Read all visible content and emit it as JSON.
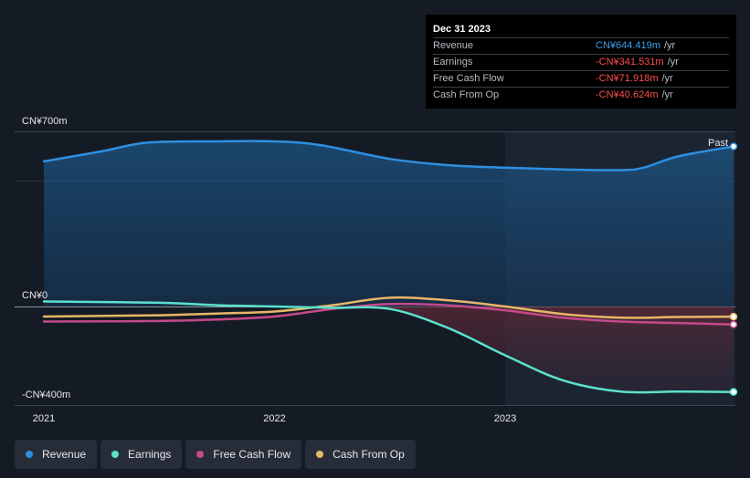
{
  "tooltip": {
    "date": "Dec 31 2023",
    "rows": [
      {
        "label": "Revenue",
        "value": "CN¥644.419m",
        "unit": "/yr",
        "positive": true
      },
      {
        "label": "Earnings",
        "value": "-CN¥341.531m",
        "unit": "/yr",
        "positive": false
      },
      {
        "label": "Free Cash Flow",
        "value": "-CN¥71.918m",
        "unit": "/yr",
        "positive": false
      },
      {
        "label": "Cash From Op",
        "value": "-CN¥40.624m",
        "unit": "/yr",
        "positive": false
      }
    ]
  },
  "past_label": "Past",
  "legend": [
    {
      "label": "Revenue",
      "color": "#2e8fe0"
    },
    {
      "label": "Earnings",
      "color": "#5ce0cc"
    },
    {
      "label": "Free Cash Flow",
      "color": "#c44a8a"
    },
    {
      "label": "Cash From Op",
      "color": "#e8b66a"
    }
  ],
  "chart_data": {
    "type": "line",
    "ylim": [
      -400,
      700
    ],
    "y_ticks": [
      {
        "value": 700,
        "label": "CN¥700m"
      },
      {
        "value": 0,
        "label": "CN¥0"
      },
      {
        "value": -400,
        "label": "-CN¥400m"
      }
    ],
    "x_ticks": [
      {
        "value": 2021.0,
        "label": "2021"
      },
      {
        "value": 2022.0,
        "label": "2022"
      },
      {
        "value": 2023.0,
        "label": "2023"
      }
    ],
    "xlim": [
      2020.87,
      2023.99
    ],
    "highlight_start": 2023.0,
    "series": [
      {
        "name": "Revenue",
        "color": "#2e8fe0",
        "x": [
          2021.0,
          2021.25,
          2021.45,
          2021.75,
          2022.0,
          2022.2,
          2022.5,
          2022.75,
          2023.0,
          2023.25,
          2023.5,
          2023.6,
          2023.75,
          2023.99
        ],
        "values": [
          580,
          620,
          655,
          660,
          660,
          645,
          590,
          565,
          555,
          548,
          545,
          555,
          600,
          640
        ]
      },
      {
        "name": "Earnings",
        "color": "#5ce0cc",
        "x": [
          2021.0,
          2021.5,
          2021.75,
          2022.0,
          2022.25,
          2022.5,
          2022.75,
          2023.0,
          2023.25,
          2023.5,
          2023.75,
          2023.99
        ],
        "values": [
          20,
          15,
          5,
          0,
          -5,
          -10,
          -85,
          -195,
          -295,
          -340,
          -340,
          -341.5
        ]
      },
      {
        "name": "Free Cash Flow",
        "color": "#c44a8a",
        "x": [
          2021.0,
          2021.5,
          2021.75,
          2022.0,
          2022.25,
          2022.5,
          2022.75,
          2023.0,
          2023.25,
          2023.5,
          2023.75,
          2023.99
        ],
        "values": [
          -60,
          -58,
          -52,
          -40,
          -10,
          10,
          5,
          -15,
          -45,
          -60,
          -66,
          -71.9
        ]
      },
      {
        "name": "Cash From Op",
        "color": "#e8b66a",
        "x": [
          2021.0,
          2021.5,
          2021.75,
          2022.0,
          2022.25,
          2022.5,
          2022.75,
          2023.0,
          2023.25,
          2023.5,
          2023.75,
          2023.99
        ],
        "values": [
          -40,
          -35,
          -28,
          -20,
          5,
          35,
          25,
          0,
          -30,
          -45,
          -42,
          -40.6
        ]
      }
    ]
  }
}
